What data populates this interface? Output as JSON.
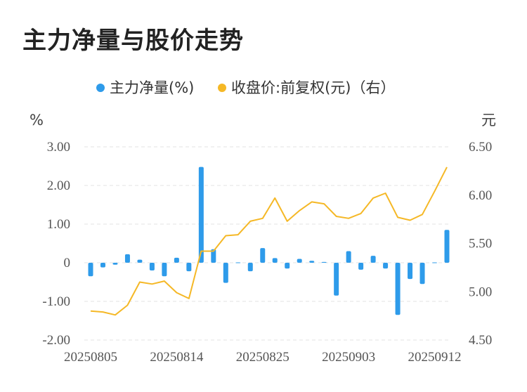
{
  "chart_data": {
    "type": "bar+line",
    "title": "主力净量与股价走势",
    "legend": [
      {
        "name": "主力净量(%)",
        "color": "#2e9bea"
      },
      {
        "name": "收盘价:前复权(元)（右）",
        "color": "#f5b826"
      }
    ],
    "left_axis": {
      "unit": "%",
      "min": -2.0,
      "max": 3.0,
      "ticks": [
        "3.00",
        "2.00",
        "1.00",
        "0",
        "-1.00",
        "-2.00"
      ],
      "tick_values": [
        3,
        2,
        1,
        0,
        -1,
        -2
      ]
    },
    "right_axis": {
      "unit": "元",
      "min": 4.5,
      "max": 6.5,
      "ticks": [
        "6.50",
        "6.00",
        "5.50",
        "5.00",
        "4.50"
      ],
      "tick_values": [
        6.5,
        6.0,
        5.5,
        5.0,
        4.5
      ]
    },
    "x_ticks": [
      {
        "label": "20250805",
        "index": 0
      },
      {
        "label": "20250814",
        "index": 7
      },
      {
        "label": "20250825",
        "index": 14
      },
      {
        "label": "20250903",
        "index": 21
      },
      {
        "label": "20250912",
        "index": 28
      }
    ],
    "series": [
      {
        "name": "主力净量(%)",
        "type": "bar",
        "axis": "left",
        "values": [
          -0.35,
          -0.12,
          -0.05,
          0.22,
          0.08,
          -0.2,
          -0.35,
          0.13,
          -0.22,
          2.48,
          0.35,
          -0.52,
          0.01,
          -0.22,
          0.38,
          0.12,
          -0.15,
          0.1,
          0.05,
          0.02,
          -0.85,
          0.3,
          -0.18,
          0.18,
          -0.15,
          -1.35,
          -0.42,
          -0.55,
          0.01,
          0.85
        ]
      },
      {
        "name": "收盘价:前复权(元)",
        "type": "line",
        "axis": "right",
        "values": [
          4.8,
          4.79,
          4.76,
          4.86,
          5.1,
          5.08,
          5.11,
          4.99,
          4.93,
          5.42,
          5.42,
          5.58,
          5.59,
          5.73,
          5.76,
          5.97,
          5.73,
          5.84,
          5.93,
          5.91,
          5.78,
          5.76,
          5.81,
          5.97,
          6.02,
          5.77,
          5.74,
          5.8,
          6.04,
          6.29
        ]
      }
    ]
  }
}
